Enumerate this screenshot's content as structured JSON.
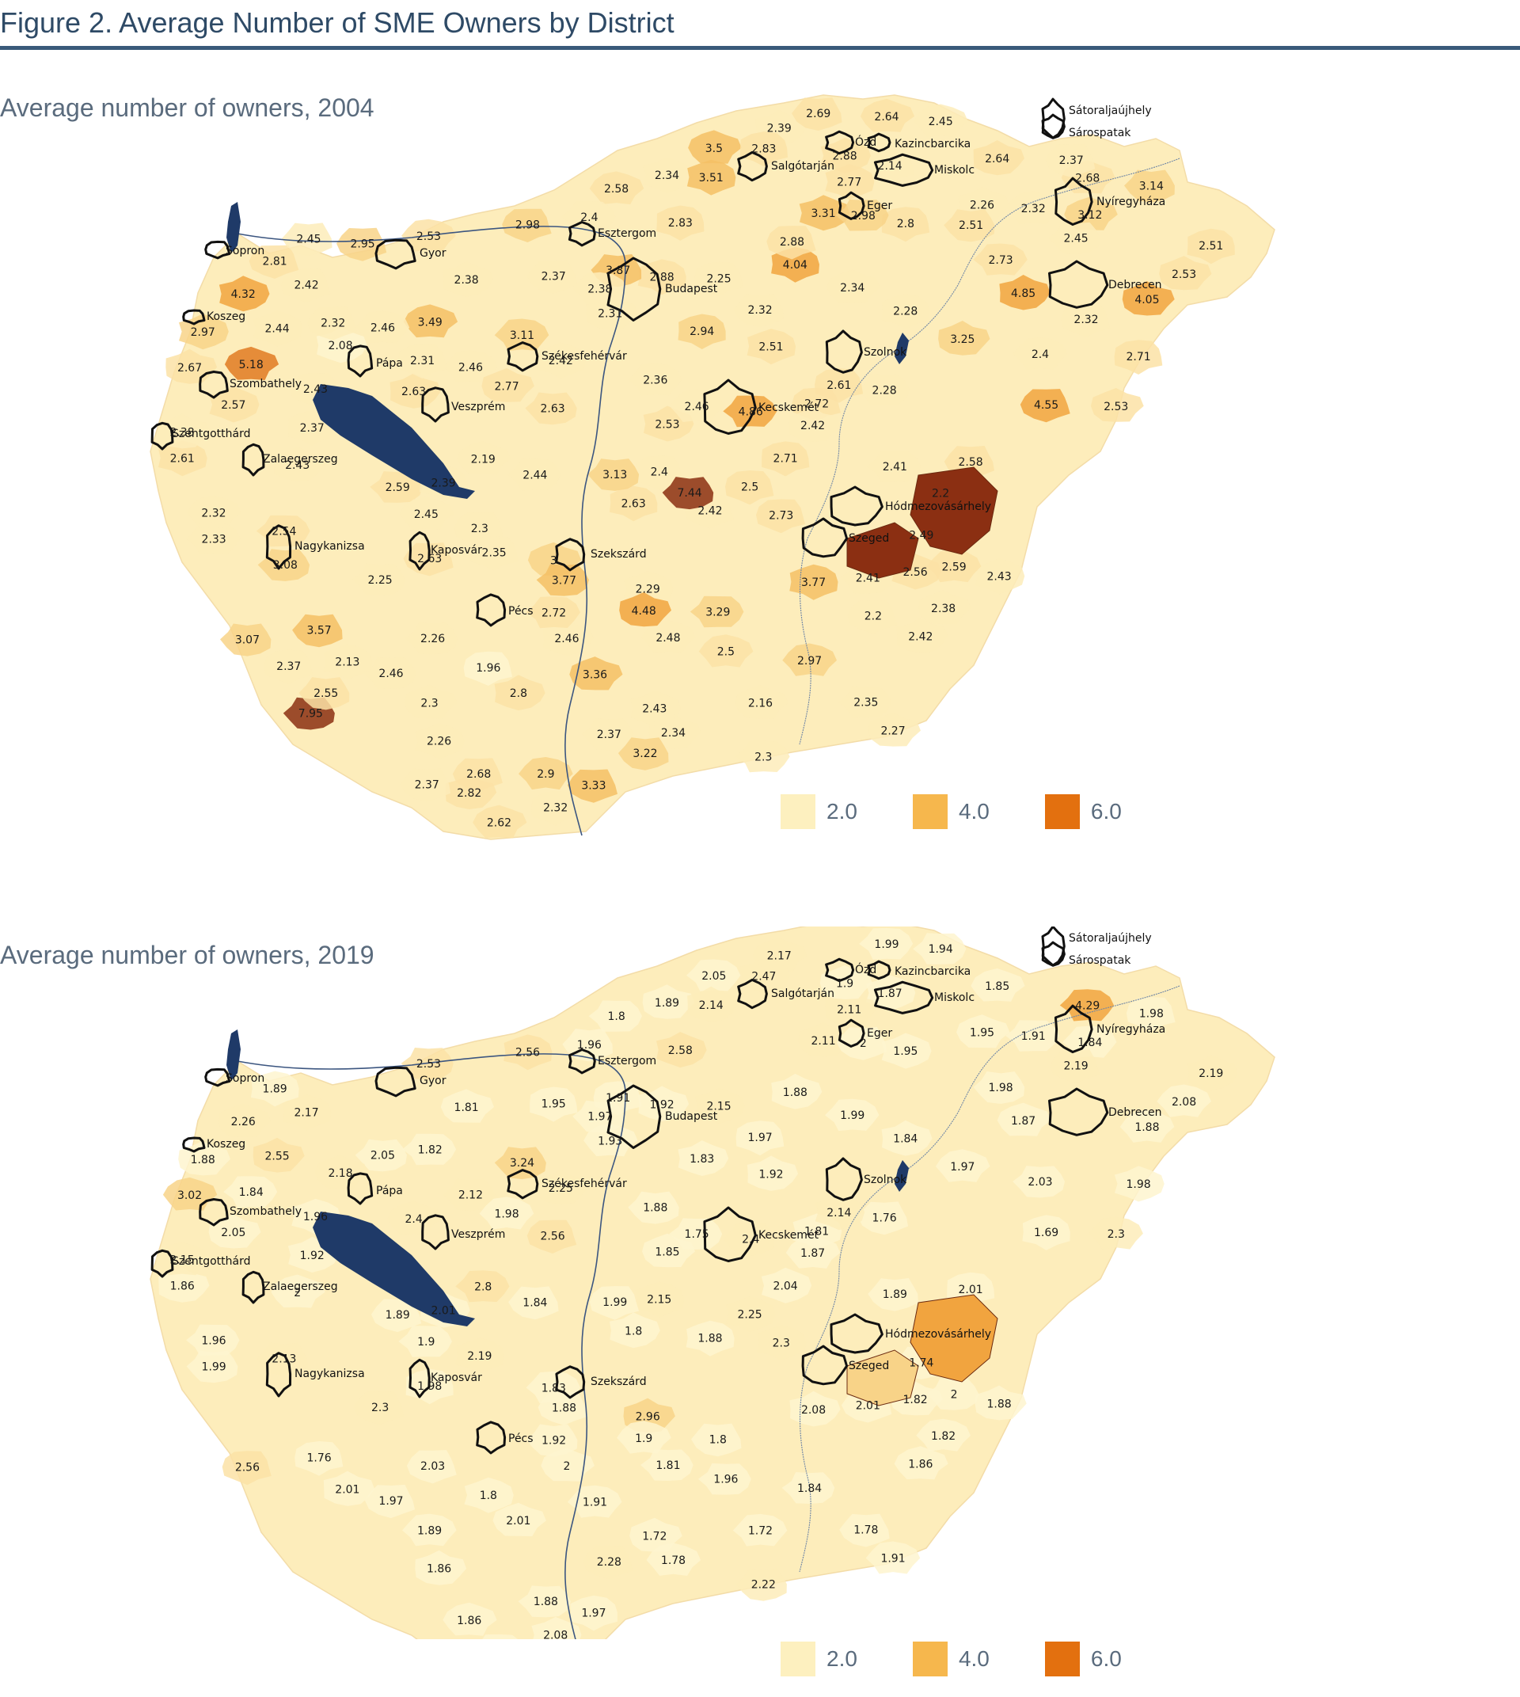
{
  "figure": {
    "title": "Figure 2. Average Number of SME Owners by District"
  },
  "legend": [
    {
      "label": "2.0",
      "color": "#fdf0bf"
    },
    {
      "label": "4.0",
      "color": "#f6b74d"
    },
    {
      "label": "6.0",
      "color": "#e3700f"
    }
  ],
  "colors": {
    "water": "#1f3a68",
    "outline": "#111111",
    "dark": "#8b2f12"
  },
  "cities": [
    "Sopron",
    "Gyor",
    "Koszeg",
    "Pápa",
    "Szombathely",
    "Veszprém",
    "Szentgotthárd",
    "Zalaegerszeg",
    "Nagykanizsa",
    "Kaposvár",
    "Pécs",
    "Szekszárd",
    "Székesfehérvár",
    "Esztergom",
    "Budapest",
    "Salgótarján",
    "Ózd",
    "Kazincbarcika",
    "Miskolc",
    "Eger",
    "Sátoraljaújhely",
    "Sárospatak",
    "Nyíregyháza",
    "Debrecen",
    "Szolnok",
    "Kecskemét",
    "Hódmezovásárhely",
    "Szeged"
  ],
  "panels": [
    {
      "id": "2004",
      "title": "Average number of owners, 2004",
      "values": [
        "2.42",
        "2.42",
        "2.4",
        "2.72",
        "1.96",
        "2.14",
        "2.25",
        "2.8",
        "2.71",
        "2.37",
        "2.51",
        "2.63",
        "2.28",
        "2.88",
        "2.51",
        "2.13",
        "2.42",
        "2.26",
        "2.43",
        "2.34",
        "2.57",
        "2.56",
        "2.43",
        "2.53",
        "2.38",
        "2.26",
        "2.39",
        "2.63",
        "2.42",
        "2.82",
        "2.67",
        "2.42",
        "2.34",
        "4.05",
        "2.38",
        "2.27",
        "2.3",
        "2.16",
        "3.12",
        "3.5",
        "2.19",
        "5.18",
        "3.49",
        "2.32",
        "2.58",
        "2.46",
        "2.48",
        "2.9",
        "2.59",
        "2.46",
        "2.46",
        "2.33",
        "2.36",
        "2.3",
        "4.86",
        "2.41",
        "3.29",
        "2.35",
        "2.28",
        "2.59",
        "2.25",
        "2.26",
        "2.45",
        "2.63",
        "3.13",
        "3.07",
        "3.14",
        "3.87",
        "3.57",
        "2.32",
        "2.37",
        "2.58",
        "2.63",
        "3.33",
        "4.55",
        "2.81",
        "2.98",
        "2.3",
        "2.73",
        "2.43",
        "2.5",
        "2.61",
        "2.71",
        "2.32",
        "2.83",
        "2.83",
        "2.94",
        "2.39",
        "4.04",
        "3.77",
        "3.51",
        "2.61",
        "2.77",
        "2.44",
        "2.29",
        "2.97",
        "2.88",
        "3.31",
        "4.32",
        "2.08",
        "2.8",
        "2.46",
        "4.85",
        "2.43",
        "2.64",
        "2.31",
        "2.38",
        "3.25",
        "4.48",
        "2.53",
        "2.77",
        "2.53",
        "3.36",
        "3",
        "2.34",
        "2.68",
        "2.64",
        "2.62",
        "2.45",
        "2.32",
        "2.45",
        "2.5",
        "2.97",
        "2.53",
        "2.4",
        "2.38",
        "3.11",
        "2.73",
        "2.72",
        "2.49",
        "2.4",
        "2.54",
        "2.44",
        "2.98",
        "2.41",
        "2.46",
        "3.77",
        "2.37",
        "3.08",
        "7.95",
        "7.44",
        "2.51",
        "2.55",
        "3.22",
        "2.45",
        "2.69",
        "2.37",
        "2.37",
        "2.95",
        "2.68",
        "2.32",
        "2.2",
        "2.88",
        "2.32",
        "2.2",
        "2.37",
        "2.35",
        "2.31"
      ],
      "special": {
        "dark1": "7.95",
        "dark2": "7.44"
      }
    },
    {
      "id": "2019",
      "title": "Average number of owners, 2019",
      "values": [
        "1.88",
        "2.17",
        "2.15",
        "1.81",
        "1.8",
        "1.87",
        "2.15",
        "1.95",
        "2.04",
        "1.92",
        "2.19",
        "1.8",
        "1.84",
        "1.92",
        "1.92",
        "2.01",
        "2.25",
        "1.86",
        "1.88",
        "1.89",
        "2.05",
        "1.82",
        "1.72",
        "1.85",
        "1.81",
        "1.95",
        "2.17",
        "2.4",
        "1.86",
        "1.86",
        "3.02",
        "1.87",
        "1.78",
        "1.88",
        "1.82",
        "1.91",
        "1.89",
        "1.72",
        "1.84",
        "2.05",
        "2.8",
        "1.84",
        "1.82",
        "1.91",
        "1.8",
        "1.75",
        "1.81",
        "1.88",
        "2",
        "2.12",
        "2.05",
        "1.99",
        "1.88",
        "2.22",
        "2.4",
        "1.89",
        "1.8",
        "1.78",
        "1.76",
        "1.89",
        "2.3",
        "2.03",
        "2.19",
        "2.56",
        "1.99",
        "2.56",
        "1.98",
        "1.91",
        "1.76",
        "1.97",
        "1.95",
        "2.01",
        "1.98",
        "1.97",
        "1.69",
        "1.89",
        "2.56",
        "2.19",
        "2.3",
        "1.96",
        "2.25",
        "2.14",
        "1.98",
        "2.08",
        "2.47",
        "2.58",
        "1.83",
        "2.01",
        "1.88",
        "2.08",
        "2.14",
        "1.86",
        "2.11",
        "2.55",
        "2.96",
        "1.88",
        "1.9",
        "2.11",
        "2.26",
        "2.18",
        "2.01",
        "2",
        "1.87",
        "2",
        "1.85",
        "1.93",
        "2.15",
        "1.97",
        "1.9",
        "2.08",
        "1.98",
        "2.3",
        "1.91",
        "1.83",
        "1.99",
        "4.29",
        "1.99",
        "2",
        "1.9",
        "1.96",
        "1.94",
        "1.96",
        "1.84",
        "2.53",
        "2.03",
        "1.97",
        "3.24",
        "1.98",
        "1.92",
        "1.74",
        "1.96",
        "2.13",
        "1.84",
        "2",
        "2.01",
        "1.97",
        "1.88",
        "2.28"
      ],
      "special": {
        "dark1": "4.29",
        "dark2": "3.24"
      }
    }
  ]
}
